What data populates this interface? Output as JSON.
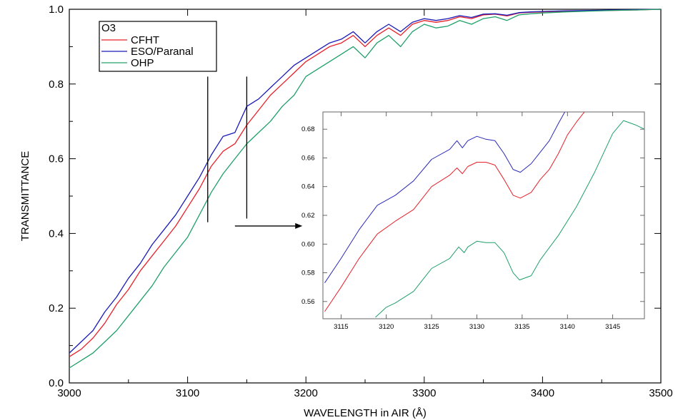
{
  "chart_data": [
    {
      "id": "main",
      "type": "line",
      "title": "",
      "legend_title": "O3",
      "legend_position": "top-left",
      "xlabel": "WAVELENGTH in AIR (Å)",
      "ylabel": "TRANSMITTANCE",
      "xlim": [
        3000,
        3500
      ],
      "ylim": [
        0.0,
        1.0
      ],
      "xticks": [
        3000,
        3100,
        3200,
        3300,
        3400,
        3500
      ],
      "xtick_labels": [
        "3000",
        "3100",
        "3200",
        "3300",
        "3400",
        "3500"
      ],
      "yticks": [
        0.0,
        0.2,
        0.4,
        0.6,
        0.8,
        1.0
      ],
      "ytick_labels": [
        "0.0",
        "0.2",
        "0.4",
        "0.6",
        "0.8",
        "1.0"
      ],
      "grid": false,
      "x": [
        3000,
        3010,
        3020,
        3030,
        3040,
        3050,
        3060,
        3070,
        3080,
        3090,
        3100,
        3110,
        3120,
        3130,
        3140,
        3150,
        3160,
        3170,
        3180,
        3190,
        3200,
        3210,
        3220,
        3230,
        3240,
        3250,
        3260,
        3270,
        3280,
        3290,
        3300,
        3310,
        3320,
        3330,
        3340,
        3350,
        3360,
        3370,
        3380,
        3390,
        3400,
        3420,
        3440,
        3460,
        3480,
        3500
      ],
      "series": [
        {
          "name": "CFHT",
          "color": "#e8202a",
          "values": [
            0.07,
            0.09,
            0.12,
            0.16,
            0.21,
            0.25,
            0.3,
            0.34,
            0.38,
            0.42,
            0.47,
            0.52,
            0.58,
            0.62,
            0.64,
            0.69,
            0.73,
            0.77,
            0.8,
            0.83,
            0.86,
            0.88,
            0.9,
            0.91,
            0.93,
            0.9,
            0.93,
            0.95,
            0.93,
            0.96,
            0.97,
            0.965,
            0.97,
            0.98,
            0.975,
            0.985,
            0.987,
            0.982,
            0.99,
            0.992,
            0.993,
            0.995,
            0.996,
            0.997,
            0.998,
            1.0
          ]
        },
        {
          "name": "ESO/Paranal",
          "color": "#1a1ab8",
          "values": [
            0.08,
            0.11,
            0.14,
            0.19,
            0.23,
            0.28,
            0.32,
            0.37,
            0.41,
            0.45,
            0.5,
            0.55,
            0.61,
            0.66,
            0.67,
            0.74,
            0.76,
            0.79,
            0.82,
            0.85,
            0.87,
            0.89,
            0.91,
            0.92,
            0.94,
            0.91,
            0.94,
            0.96,
            0.94,
            0.965,
            0.975,
            0.97,
            0.975,
            0.983,
            0.978,
            0.987,
            0.988,
            0.984,
            0.991,
            0.993,
            0.994,
            0.996,
            0.997,
            0.998,
            0.999,
            1.0
          ]
        },
        {
          "name": "OHP",
          "color": "#1fa06a",
          "values": [
            0.04,
            0.06,
            0.08,
            0.11,
            0.14,
            0.18,
            0.22,
            0.26,
            0.31,
            0.35,
            0.39,
            0.45,
            0.51,
            0.56,
            0.6,
            0.64,
            0.67,
            0.7,
            0.74,
            0.77,
            0.82,
            0.84,
            0.86,
            0.88,
            0.9,
            0.87,
            0.91,
            0.93,
            0.9,
            0.94,
            0.96,
            0.95,
            0.955,
            0.97,
            0.96,
            0.975,
            0.98,
            0.97,
            0.985,
            0.988,
            0.99,
            0.993,
            0.995,
            0.997,
            0.998,
            1.0
          ]
        }
      ],
      "annotations": [
        {
          "type": "vline",
          "x": 3117,
          "y_range": [
            0.43,
            0.82
          ]
        },
        {
          "type": "vline",
          "x": 3150,
          "y_range": [
            0.44,
            0.82
          ]
        },
        {
          "type": "arrow",
          "from": [
            3140,
            0.42
          ],
          "to": [
            3197,
            0.42
          ],
          "label": ""
        }
      ]
    },
    {
      "id": "inset",
      "type": "line",
      "title": "",
      "xlabel": "",
      "ylabel": "",
      "xlim": [
        3113,
        3148.5
      ],
      "ylim": [
        0.548,
        0.692
      ],
      "xticks": [
        3115,
        3120,
        3125,
        3130,
        3135,
        3140,
        3145
      ],
      "xtick_labels": [
        "3115",
        "3120",
        "3125",
        "3130",
        "3135",
        "3140",
        "3145"
      ],
      "yticks": [
        0.56,
        0.58,
        0.6,
        0.62,
        0.64,
        0.66,
        0.68
      ],
      "ytick_labels": [
        "0.56",
        "0.58",
        "0.60",
        "0.62",
        "0.64",
        "0.66",
        "0.68"
      ],
      "grid": false,
      "series": [
        {
          "name": "CFHT",
          "color": "#e8202a",
          "x": [
            3113.2,
            3115,
            3117,
            3119,
            3121,
            3123,
            3125,
            3127,
            3127.8,
            3128.4,
            3129,
            3130,
            3131,
            3132,
            3133,
            3134,
            3134.8,
            3136,
            3137,
            3138,
            3139,
            3140,
            3141,
            3142
          ],
          "values": [
            0.553,
            0.57,
            0.59,
            0.607,
            0.616,
            0.624,
            0.64,
            0.648,
            0.653,
            0.649,
            0.654,
            0.657,
            0.657,
            0.655,
            0.645,
            0.634,
            0.632,
            0.636,
            0.645,
            0.652,
            0.663,
            0.676,
            0.685,
            0.693
          ]
        },
        {
          "name": "ESO/Paranal",
          "color": "#2a2ab8",
          "x": [
            3113.2,
            3115,
            3117,
            3119,
            3121,
            3123,
            3125,
            3127,
            3127.8,
            3128.4,
            3129,
            3130,
            3131,
            3132,
            3133,
            3134,
            3134.8,
            3136,
            3137,
            3138,
            3139,
            3139.8
          ],
          "values": [
            0.573,
            0.59,
            0.61,
            0.627,
            0.634,
            0.644,
            0.659,
            0.666,
            0.672,
            0.667,
            0.672,
            0.675,
            0.673,
            0.672,
            0.663,
            0.652,
            0.65,
            0.656,
            0.664,
            0.672,
            0.684,
            0.693
          ]
        },
        {
          "name": "OHP",
          "color": "#1fa06a",
          "x": [
            3118.8,
            3120,
            3121,
            3123,
            3125,
            3127,
            3128,
            3128.6,
            3129,
            3130,
            3131,
            3132,
            3133,
            3134,
            3134.7,
            3136,
            3137,
            3139,
            3141,
            3143,
            3145,
            3146.2,
            3147.5,
            3148.5
          ],
          "values": [
            0.549,
            0.556,
            0.559,
            0.567,
            0.583,
            0.59,
            0.598,
            0.594,
            0.598,
            0.602,
            0.601,
            0.601,
            0.594,
            0.58,
            0.575,
            0.578,
            0.589,
            0.606,
            0.626,
            0.65,
            0.677,
            0.686,
            0.683,
            0.68
          ]
        }
      ]
    }
  ]
}
